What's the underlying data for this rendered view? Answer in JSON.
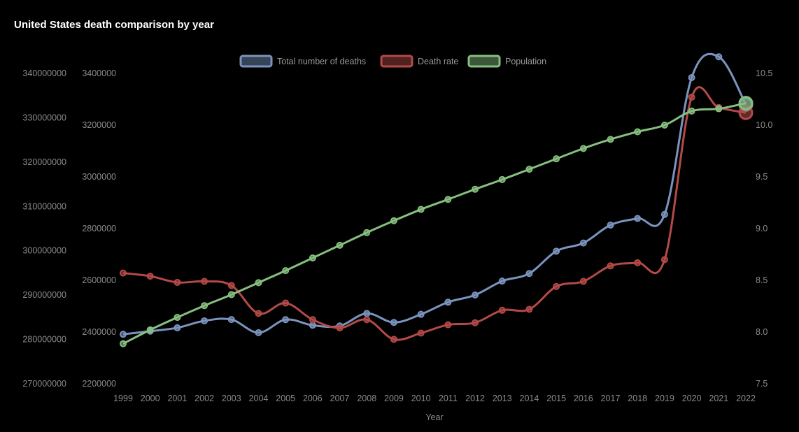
{
  "chart_data": {
    "type": "line",
    "title": "United States death comparison by year",
    "xlabel": "Year",
    "categories": [
      "1999",
      "2000",
      "2001",
      "2002",
      "2003",
      "2004",
      "2005",
      "2006",
      "2007",
      "2008",
      "2009",
      "2010",
      "2011",
      "2012",
      "2013",
      "2014",
      "2015",
      "2016",
      "2017",
      "2018",
      "2019",
      "2020",
      "2021",
      "2022"
    ],
    "series": [
      {
        "name": "Total number of deaths",
        "axis": "y_deaths",
        "color": "#7b94bf",
        "values": [
          2391399,
          2403351,
          2416425,
          2443387,
          2448288,
          2397615,
          2448017,
          2426264,
          2423712,
          2471984,
          2437163,
          2468435,
          2515458,
          2543279,
          2596993,
          2626418,
          2712630,
          2744248,
          2813503,
          2839205,
          2854838,
          3383729,
          3464231,
          3279857
        ]
      },
      {
        "name": "Death rate",
        "axis": "y_rate",
        "color": "#b44a47",
        "values": [
          8.57,
          8.54,
          8.48,
          8.49,
          8.45,
          8.18,
          8.28,
          8.12,
          8.04,
          8.12,
          7.93,
          7.99,
          8.07,
          8.09,
          8.21,
          8.22,
          8.44,
          8.49,
          8.64,
          8.67,
          8.7,
          10.27,
          10.17,
          10.12
        ]
      },
      {
        "name": "Population",
        "axis": "y_population",
        "color": "#86bf7e",
        "values": [
          279040168,
          282162411,
          284968955,
          287625193,
          290107933,
          292805298,
          295516599,
          298379912,
          301231207,
          304093966,
          306771529,
          309327143,
          311583481,
          313877662,
          316059947,
          318386329,
          320738994,
          323071755,
          325122128,
          326838199,
          328329953,
          331511512,
          332031554,
          333287557
        ]
      }
    ],
    "axes": {
      "y_population": {
        "position": "left",
        "ylim": [
          270000000,
          340000000
        ],
        "ticks": [
          "270000000",
          "280000000",
          "290000000",
          "300000000",
          "310000000",
          "320000000",
          "330000000",
          "340000000"
        ]
      },
      "y_deaths": {
        "position": "left",
        "ylim": [
          2200000,
          3400000
        ],
        "ticks": [
          "2200000",
          "2400000",
          "2600000",
          "2800000",
          "3000000",
          "3200000",
          "3400000"
        ]
      },
      "y_rate": {
        "position": "right",
        "ylim": [
          7.5,
          10.5
        ],
        "ticks": [
          "7.5",
          "8.0",
          "8.5",
          "9.0",
          "9.5",
          "10.0",
          "10.5"
        ]
      }
    },
    "grid": false,
    "legend": "top-center",
    "highlighted_index": 23
  }
}
